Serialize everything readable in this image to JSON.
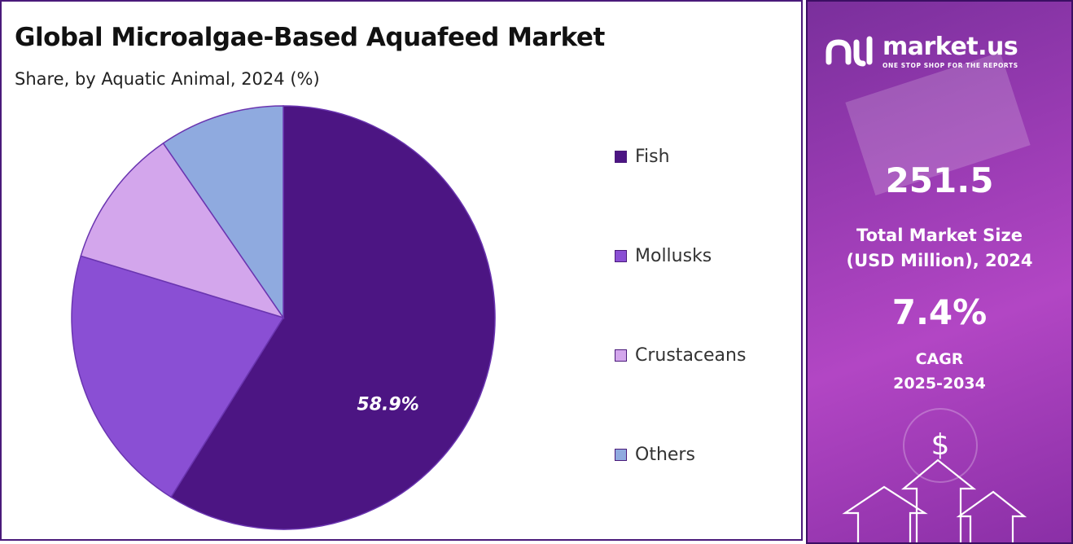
{
  "chart_data": {
    "type": "pie",
    "title": "Global Microalgae-Based Aquafeed Market",
    "subtitle": "Share, by Aquatic Animal, 2024 (%)",
    "categories": [
      "Fish",
      "Mollusks",
      "Crustaceans",
      "Others"
    ],
    "values": [
      58.9,
      20.8,
      10.7,
      9.6
    ],
    "colors": [
      "#4c1583",
      "#8a4fd4",
      "#d3a6ec",
      "#8faadf"
    ],
    "data_labels": [
      "58.9%",
      "",
      "",
      ""
    ],
    "legend_position": "right"
  },
  "brand": {
    "name": "market.us",
    "tagline": "ONE STOP SHOP FOR THE REPORTS"
  },
  "stats": {
    "market_size_value": "251.5",
    "market_size_label_line1": "Total Market Size",
    "market_size_label_line2": "(USD Million), 2024",
    "cagr_value": "7.4%",
    "cagr_label_line1": "CAGR",
    "cagr_label_line2": "2025-2034"
  },
  "decor": {
    "dollar_symbol": "$"
  }
}
